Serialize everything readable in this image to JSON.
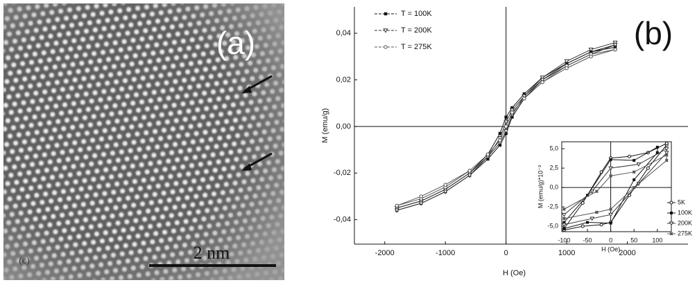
{
  "image_panel": {
    "label": "(a)",
    "scale_bar": "2 nm",
    "corner_label": "(c)"
  },
  "chart_data": [
    {
      "type": "line",
      "panel_label": "(b)",
      "x_label": "H (Oe)",
      "y_label": "M (emu/g)",
      "xlim": [
        -2500,
        3000
      ],
      "ylim": [
        -0.0505,
        0.0513
      ],
      "xticks": [
        -2000,
        -1000,
        0,
        1000,
        2000
      ],
      "yticks": [
        {
          "value": -0.04,
          "label": "-0,04"
        },
        {
          "value": -0.02,
          "label": "-0,02"
        },
        {
          "value": 0,
          "label": "0,00"
        },
        {
          "value": 0.02,
          "label": "0,02"
        },
        {
          "value": 0.04,
          "label": "0,04"
        }
      ],
      "x": [
        -1800,
        -1400,
        -1000,
        -600,
        -300,
        -100,
        0,
        100,
        300,
        600,
        1000,
        1400,
        1800,
        1800,
        1400,
        1000,
        600,
        300,
        100,
        0,
        -100,
        -300,
        -600,
        -1000,
        -1400,
        -1800
      ],
      "series": [
        {
          "name": "T = 100K",
          "color": "#111111",
          "marker": "square",
          "values": [
            -0.036,
            -0.033,
            -0.028,
            -0.021,
            -0.014,
            -0.008,
            -0.003,
            0.004,
            0.012,
            0.02,
            0.027,
            0.032,
            0.035,
            0.034,
            0.032,
            0.027,
            0.021,
            0.014,
            0.008,
            0.004,
            -0.003,
            -0.012,
            -0.02,
            -0.027,
            -0.032,
            -0.035
          ]
        },
        {
          "name": "T = 200K",
          "color": "#333333",
          "marker": "triangle",
          "values": [
            -0.035,
            -0.032,
            -0.027,
            -0.02,
            -0.013,
            -0.007,
            -0.002,
            0.005,
            0.013,
            0.021,
            0.028,
            0.033,
            0.036,
            0.035,
            0.031,
            0.026,
            0.02,
            0.013,
            0.007,
            0.002,
            -0.005,
            -0.013,
            -0.021,
            -0.028,
            -0.033,
            -0.036
          ]
        },
        {
          "name": "T = 275K",
          "color": "#555555",
          "marker": "circle",
          "values": [
            -0.034,
            -0.031,
            -0.026,
            -0.019,
            -0.012,
            -0.006,
            0.0,
            0.006,
            0.012,
            0.019,
            0.026,
            0.031,
            0.033,
            0.033,
            0.03,
            0.025,
            0.019,
            0.012,
            0.006,
            0.0,
            -0.006,
            -0.012,
            -0.019,
            -0.025,
            -0.03,
            -0.034
          ]
        }
      ]
    },
    {
      "type": "line",
      "x_label": "H (Oe)",
      "y_label": "M (emu/g)*10⁻³",
      "xlim": [
        -105,
        130
      ],
      "ylim": [
        -5.7,
        5.9
      ],
      "xticks": [
        -100,
        -50,
        0,
        50,
        100
      ],
      "yticks": [
        {
          "value": -5,
          "label": "-5,0"
        },
        {
          "value": -2.5,
          "label": "-2,5"
        },
        {
          "value": 0,
          "label": "0,0"
        },
        {
          "value": 2.5,
          "label": "2,5"
        },
        {
          "value": 5,
          "label": "5,0"
        }
      ],
      "series": [
        {
          "name": "5K",
          "color": "#111111",
          "marker": "circle",
          "x": [
            -100,
            -60,
            -20,
            0,
            40,
            80,
            120,
            120,
            80,
            40,
            0,
            -20,
            -60,
            -100
          ],
          "values": [
            -5.5,
            -5.0,
            -4.8,
            -4.5,
            -1.0,
            2.5,
            5.5,
            5.7,
            4.5,
            4.0,
            3.8,
            2.0,
            -2.0,
            -5.3
          ]
        },
        {
          "name": "100K",
          "color": "#111111",
          "marker": "square",
          "x": [
            -100,
            -50,
            0,
            50,
            100,
            100,
            50,
            0,
            -50,
            -100
          ],
          "values": [
            -5.3,
            -4.5,
            -4.6,
            1.0,
            4.5,
            5.2,
            3.5,
            3.6,
            -1.0,
            -4.5
          ]
        },
        {
          "name": "200K",
          "color": "#333333",
          "marker": "triangle",
          "x": [
            -100,
            -40,
            0,
            60,
            120,
            120,
            60,
            0,
            -40,
            -100
          ],
          "values": [
            -4.8,
            -4.0,
            -3.5,
            0.5,
            4.5,
            5.0,
            3.0,
            2.5,
            -0.5,
            -3.5
          ]
        },
        {
          "name": "275K",
          "color": "#555555",
          "marker": "star",
          "x": [
            -100,
            -30,
            0,
            50,
            120,
            120,
            50,
            0,
            -30,
            -100
          ],
          "values": [
            -4.0,
            -3.2,
            -2.8,
            0.0,
            3.5,
            4.2,
            2.0,
            1.5,
            -0.5,
            -2.8
          ]
        }
      ]
    }
  ]
}
